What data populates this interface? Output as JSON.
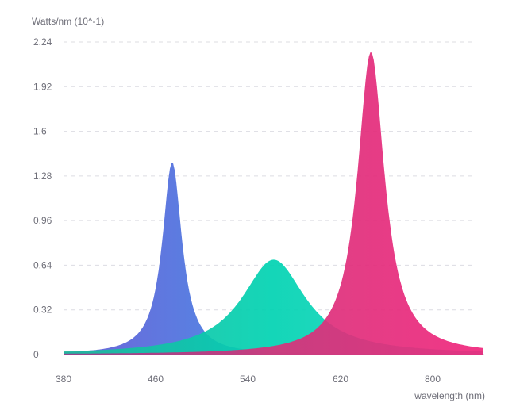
{
  "chart_data": {
    "type": "area",
    "ylabel": "Watts/nm (10^-1)",
    "xlabel": "wavelength (nm)",
    "x_tick_labels": [
      "380",
      "460",
      "540",
      "620",
      "800"
    ],
    "y_ticks": [
      0,
      0.32,
      0.64,
      0.96,
      1.28,
      1.6,
      1.92,
      2.24
    ],
    "y_tick_labels": [
      "0",
      "0.32",
      "0.64",
      "0.96",
      "1.28",
      "1.6",
      "1.92",
      "2.24"
    ],
    "ylim": [
      0,
      2.24
    ],
    "grid": true,
    "series": [
      {
        "peak_at_tick": 1.18,
        "peak": 1.38,
        "width": 0.13,
        "gradient": [
          "#6f63d9",
          "#4d8fe6",
          "#32aee8"
        ]
      },
      {
        "peak_at_tick": 2.28,
        "peak": 0.68,
        "width": 0.42,
        "gradient": [
          "#1fb79a",
          "#00d3b2",
          "#27d6c4"
        ]
      },
      {
        "peak_at_tick": 3.33,
        "peak": 2.17,
        "width": 0.18,
        "gradient": [
          "#9b3d8c",
          "#d8317a",
          "#f0267c"
        ]
      }
    ]
  }
}
